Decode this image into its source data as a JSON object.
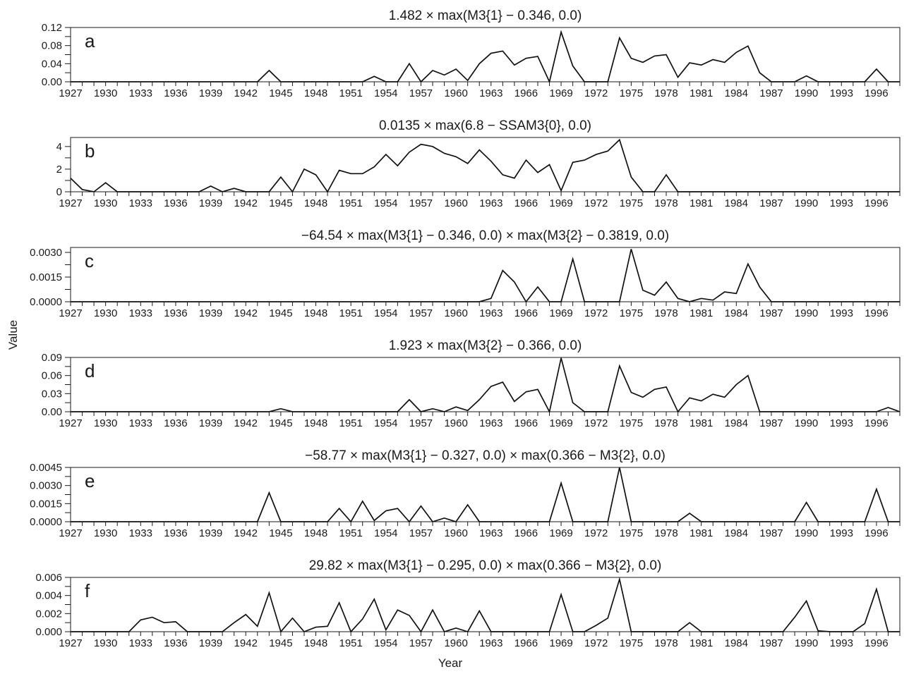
{
  "figure": {
    "xlabel": "Year",
    "ylabel": "Value"
  },
  "chart_data": [
    {
      "type": "line",
      "panel": "a",
      "title": "1.482 × max(M3{1} − 0.346, 0.0)",
      "x_range": [
        1927,
        1998
      ],
      "ylim": [
        0,
        0.12
      ],
      "yticks": [
        "0.00",
        "0.04",
        "0.08",
        "0.12"
      ],
      "ytick_values": [
        0,
        0.04,
        0.08,
        0.12
      ],
      "xticks": [
        "1927",
        "1930",
        "1933",
        "1936",
        "1939",
        "1942",
        "1945",
        "1948",
        "1951",
        "1954",
        "1957",
        "1960",
        "1963",
        "1966",
        "1969",
        "1972",
        "1975",
        "1978",
        "1981",
        "1984",
        "1987",
        "1990",
        "1993",
        "1996"
      ],
      "x_start": 1927,
      "y": [
        0,
        0,
        0,
        0,
        0,
        0,
        0,
        0,
        0,
        0,
        0,
        0,
        0,
        0,
        0,
        0,
        0,
        0.025,
        0,
        0,
        0,
        0,
        0,
        0,
        0,
        0,
        0.012,
        0,
        0,
        0.04,
        0,
        0.025,
        0.015,
        0.028,
        0.003,
        0.04,
        0.063,
        0.068,
        0.037,
        0.052,
        0.056,
        0,
        0.11,
        0.035,
        0,
        0,
        0,
        0.097,
        0.052,
        0.043,
        0.057,
        0.06,
        0.01,
        0.042,
        0.037,
        0.049,
        0.043,
        0.065,
        0.079,
        0.02,
        0,
        0,
        0,
        0.013,
        0,
        0,
        0,
        0,
        0,
        0.028,
        0,
        0
      ]
    },
    {
      "type": "line",
      "panel": "b",
      "title": "0.0135 × max(6.8 − SSAM3{0}, 0.0)",
      "x_range": [
        1927,
        1998
      ],
      "ylim": [
        0,
        4.8
      ],
      "yticks": [
        "0",
        "2",
        "4"
      ],
      "ytick_values": [
        0,
        2,
        4
      ],
      "xticks": [
        "1927",
        "1930",
        "1933",
        "1936",
        "1939",
        "1942",
        "1945",
        "1948",
        "1951",
        "1954",
        "1957",
        "1960",
        "1963",
        "1966",
        "1969",
        "1972",
        "1975",
        "1978",
        "1981",
        "1984",
        "1987",
        "1990",
        "1993",
        "1996"
      ],
      "x_start": 1927,
      "y": [
        1.2,
        0.2,
        0,
        0.8,
        0,
        0,
        0,
        0,
        0,
        0,
        0,
        0,
        0.5,
        0,
        0.3,
        0,
        0,
        0,
        1.3,
        0,
        2.0,
        1.5,
        0,
        1.9,
        1.6,
        1.6,
        2.2,
        3.3,
        2.3,
        3.5,
        4.2,
        4.0,
        3.4,
        3.1,
        2.5,
        3.7,
        2.7,
        1.5,
        1.2,
        2.8,
        1.7,
        2.4,
        0.1,
        2.6,
        2.8,
        3.3,
        3.6,
        4.6,
        1.3,
        0,
        0,
        1.5,
        0,
        0,
        0,
        0,
        0,
        0,
        0,
        0,
        0,
        0,
        0,
        0,
        0,
        0,
        0,
        0,
        0,
        0,
        0,
        0
      ]
    },
    {
      "type": "line",
      "panel": "c",
      "title": "−64.54 × max(M3{1} − 0.346, 0.0) × max(M3{2} − 0.3819, 0.0)",
      "x_range": [
        1927,
        1998
      ],
      "ylim": [
        0,
        0.0033
      ],
      "yticks": [
        "0.0000",
        "0.0015",
        "0.0030"
      ],
      "ytick_values": [
        0,
        0.0015,
        0.003
      ],
      "xticks": [
        "1927",
        "1930",
        "1933",
        "1936",
        "1939",
        "1942",
        "1945",
        "1948",
        "1951",
        "1954",
        "1957",
        "1960",
        "1963",
        "1966",
        "1969",
        "1972",
        "1975",
        "1978",
        "1981",
        "1984",
        "1987",
        "1990",
        "1993",
        "1996"
      ],
      "x_start": 1927,
      "y": [
        0,
        0,
        0,
        0,
        0,
        0,
        0,
        0,
        0,
        0,
        0,
        0,
        0,
        0,
        0,
        0,
        0,
        0,
        0,
        0,
        0,
        0,
        0,
        0,
        0,
        0,
        0,
        0,
        0,
        0,
        0,
        0,
        0,
        0,
        0,
        0,
        0.0002,
        0.0019,
        0.0012,
        0,
        0.0009,
        0,
        0,
        0.0026,
        0,
        0,
        0,
        0,
        0.0032,
        0.0007,
        0.0004,
        0.0012,
        0.0002,
        0,
        0.0002,
        0.0001,
        0.0006,
        0.0005,
        0.0023,
        0.0009,
        0,
        0,
        0,
        0,
        0,
        0,
        0,
        0,
        0,
        0,
        0,
        0
      ]
    },
    {
      "type": "line",
      "panel": "d",
      "title": "1.923 × max(M3{2} − 0.366, 0.0)",
      "x_range": [
        1927,
        1998
      ],
      "ylim": [
        0,
        0.09
      ],
      "yticks": [
        "0.00",
        "0.03",
        "0.06",
        "0.09"
      ],
      "ytick_values": [
        0,
        0.03,
        0.06,
        0.09
      ],
      "xticks": [
        "1927",
        "1930",
        "1933",
        "1936",
        "1939",
        "1942",
        "1945",
        "1948",
        "1951",
        "1954",
        "1957",
        "1960",
        "1963",
        "1966",
        "1969",
        "1972",
        "1975",
        "1978",
        "1981",
        "1984",
        "1987",
        "1990",
        "1993",
        "1996"
      ],
      "x_start": 1927,
      "y": [
        0,
        0,
        0,
        0,
        0,
        0,
        0,
        0,
        0,
        0,
        0,
        0,
        0,
        0,
        0,
        0,
        0,
        0,
        0.005,
        0,
        0,
        0,
        0,
        0,
        0,
        0,
        0,
        0,
        0,
        0.02,
        0,
        0.005,
        0,
        0.008,
        0.002,
        0.02,
        0.042,
        0.049,
        0.017,
        0.033,
        0.037,
        0,
        0.089,
        0.015,
        0,
        0,
        0,
        0.076,
        0.032,
        0.024,
        0.037,
        0.041,
        0,
        0.023,
        0.018,
        0.029,
        0.024,
        0.045,
        0.06,
        0,
        0,
        0,
        0,
        0,
        0,
        0,
        0,
        0,
        0,
        0,
        0.007,
        0
      ]
    },
    {
      "type": "line",
      "panel": "e",
      "title": "−58.77 × max(M3{1} − 0.327, 0.0) × max(0.366 − M3{2}, 0.0)",
      "x_range": [
        1927,
        1998
      ],
      "ylim": [
        0,
        0.0045
      ],
      "yticks": [
        "0.0000",
        "0.0015",
        "0.0030",
        "0.0045"
      ],
      "ytick_values": [
        0,
        0.0015,
        0.003,
        0.0045
      ],
      "xticks": [
        "1927",
        "1930",
        "1933",
        "1936",
        "1939",
        "1942",
        "1945",
        "1948",
        "1951",
        "1954",
        "1957",
        "1960",
        "1963",
        "1966",
        "1969",
        "1972",
        "1975",
        "1978",
        "1981",
        "1984",
        "1987",
        "1990",
        "1993",
        "1996"
      ],
      "x_start": 1927,
      "y": [
        0,
        0,
        0,
        0,
        0,
        0,
        0,
        0,
        0,
        0,
        0,
        0,
        0,
        0,
        0,
        0,
        0,
        0.0024,
        0,
        0,
        0,
        0,
        0,
        0.0011,
        0,
        0.0017,
        0.0001,
        0.0009,
        0.0011,
        0,
        0.0013,
        0,
        0.0003,
        0,
        0.0014,
        0,
        0,
        0,
        0,
        0,
        0,
        0,
        0.0032,
        0,
        0,
        0,
        0,
        0.0045,
        0,
        0,
        0,
        0,
        0,
        0.0007,
        0,
        0,
        0,
        0,
        0,
        0,
        0,
        0,
        0,
        0.0016,
        0,
        0,
        0,
        0,
        0,
        0.0027,
        0,
        0
      ]
    },
    {
      "type": "line",
      "panel": "f",
      "title": "29.82 × max(M3{1} − 0.295, 0.0) × max(0.366 − M3{2}, 0.0)",
      "x_range": [
        1927,
        1998
      ],
      "ylim": [
        0,
        0.006
      ],
      "yticks": [
        "0.000",
        "0.002",
        "0.004",
        "0.006"
      ],
      "ytick_values": [
        0,
        0.002,
        0.004,
        0.006
      ],
      "xticks": [
        "1927",
        "1930",
        "1933",
        "1936",
        "1939",
        "1942",
        "1945",
        "1948",
        "1951",
        "1954",
        "1957",
        "1960",
        "1963",
        "1966",
        "1969",
        "1972",
        "1975",
        "1978",
        "1981",
        "1984",
        "1987",
        "1990",
        "1993",
        "1996"
      ],
      "x_start": 1927,
      "y": [
        0,
        0,
        0,
        0,
        0,
        0,
        0.0013,
        0.0016,
        0.001,
        0.0011,
        0,
        0,
        0,
        0,
        0.001,
        0.0019,
        0.0006,
        0.0043,
        0,
        0.0015,
        0,
        0.0005,
        0.0006,
        0.0032,
        0,
        0.0014,
        0.0036,
        0.0002,
        0.0024,
        0.0018,
        0,
        0.0024,
        0,
        0.0004,
        0,
        0.0023,
        0,
        0,
        0,
        0,
        0,
        0,
        0.0041,
        0,
        0,
        0.0007,
        0.0015,
        0.0058,
        0,
        0,
        0,
        0,
        0,
        0.001,
        0,
        0,
        0,
        0,
        0,
        0,
        0,
        0,
        0.0016,
        0.0034,
        0.0001,
        0,
        0,
        0,
        0.0009,
        0.0047,
        0,
        0
      ]
    }
  ]
}
